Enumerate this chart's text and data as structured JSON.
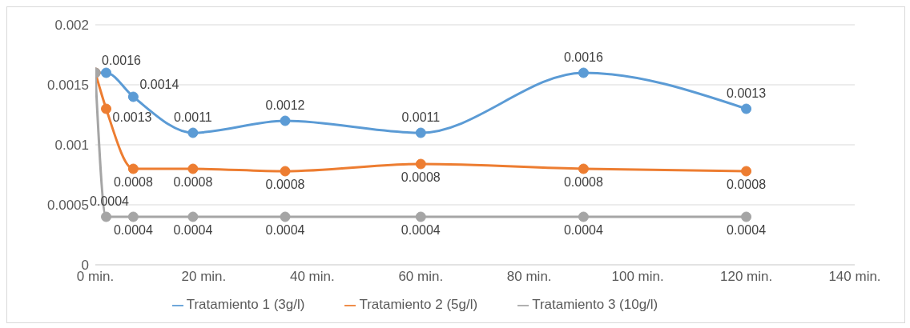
{
  "chart_data": {
    "type": "line",
    "x": [
      0,
      2,
      7,
      18,
      35,
      60,
      90,
      120
    ],
    "series": [
      {
        "name": "Tratamiento 1 (3g/l)",
        "color": "#5b9bd5",
        "values": [
          0.0016,
          0.0016,
          0.0014,
          0.0011,
          0.0012,
          0.0011,
          0.0016,
          0.0013
        ],
        "value_labels": [
          "0.0016",
          null,
          "0.0014",
          "0.0011",
          "0.0012",
          "0.0011",
          "0.0016",
          "0.0013"
        ]
      },
      {
        "name": "Tratamiento 2 (5g/l)",
        "color": "#ed7d31",
        "values": [
          0.0016,
          0.0013,
          0.0008,
          0.0008,
          0.00078,
          0.00084,
          0.0008,
          0.00078
        ],
        "value_labels": [
          null,
          "0.0013",
          "0.0008",
          "0.0008",
          "0.0008",
          "0.0008",
          "0.0008",
          "0.0008"
        ]
      },
      {
        "name": "Tratamiento 3 (10g/l)",
        "color": "#a5a5a5",
        "values": [
          0.0016,
          0.0004,
          0.0004,
          0.0004,
          0.0004,
          0.0004,
          0.0004,
          0.0004
        ],
        "value_labels": [
          null,
          "0.0004",
          "0.0004",
          "0.0004",
          "0.0004",
          "0.0004",
          "0.0004",
          "0.0004"
        ]
      }
    ],
    "xlim": [
      0,
      140
    ],
    "xticks": [
      {
        "value": 0,
        "label": "0 min."
      },
      {
        "value": 20,
        "label": "20 min."
      },
      {
        "value": 40,
        "label": "40 min."
      },
      {
        "value": 60,
        "label": "60 min."
      },
      {
        "value": 80,
        "label": "80 min."
      },
      {
        "value": 100,
        "label": "100 min."
      },
      {
        "value": 120,
        "label": "120 min."
      },
      {
        "value": 140,
        "label": "140 min."
      }
    ],
    "ylim": [
      0,
      0.002
    ],
    "yticks": [
      0,
      0.0005,
      0.001,
      0.0015,
      0.002
    ],
    "grid": "y",
    "legend": "bottom",
    "marker": "circle",
    "line_style": "solid"
  }
}
